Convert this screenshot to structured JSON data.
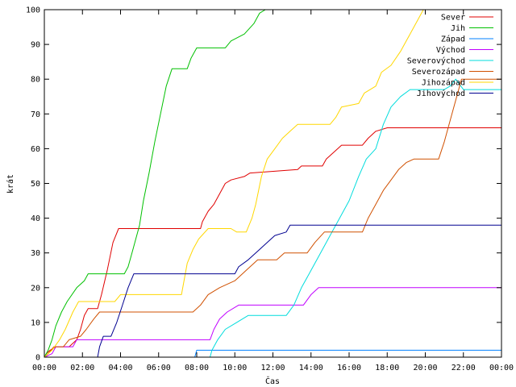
{
  "chart_data": {
    "type": "line",
    "xlabel": "Čas",
    "ylabel": "krát",
    "ylim": [
      0,
      100
    ],
    "xlim": [
      0,
      24
    ],
    "x_ticks": [
      "00:00",
      "02:00",
      "04:00",
      "06:00",
      "08:00",
      "10:00",
      "12:00",
      "14:00",
      "16:00",
      "18:00",
      "20:00",
      "22:00",
      "00:00"
    ],
    "y_ticks": [
      0,
      10,
      20,
      30,
      40,
      50,
      60,
      70,
      80,
      90,
      100
    ],
    "legend_position": "top-right",
    "grid": false,
    "series": [
      {
        "name": "Sever",
        "color": "#e00000",
        "points": [
          [
            0,
            0
          ],
          [
            0.1,
            1
          ],
          [
            0.3,
            2
          ],
          [
            0.6,
            3
          ],
          [
            1.3,
            3
          ],
          [
            1.7,
            5
          ],
          [
            1.9,
            8
          ],
          [
            2.1,
            12
          ],
          [
            2.3,
            14
          ],
          [
            2.8,
            14
          ],
          [
            3.0,
            18
          ],
          [
            3.3,
            25
          ],
          [
            3.6,
            33
          ],
          [
            3.9,
            37
          ],
          [
            8.2,
            37
          ],
          [
            8.3,
            39
          ],
          [
            8.6,
            42
          ],
          [
            8.9,
            44
          ],
          [
            9.2,
            47
          ],
          [
            9.5,
            50
          ],
          [
            9.8,
            51
          ],
          [
            10.5,
            52
          ],
          [
            10.8,
            53
          ],
          [
            13.3,
            54
          ],
          [
            13.5,
            55
          ],
          [
            14.6,
            55
          ],
          [
            14.8,
            57
          ],
          [
            15.2,
            59
          ],
          [
            15.6,
            61
          ],
          [
            16.7,
            61
          ],
          [
            17.0,
            63
          ],
          [
            17.4,
            65
          ],
          [
            18.0,
            66
          ],
          [
            24,
            66
          ]
        ]
      },
      {
        "name": "Jih",
        "color": "#00c000",
        "points": [
          [
            0,
            0
          ],
          [
            0.2,
            2
          ],
          [
            0.4,
            5
          ],
          [
            0.6,
            9
          ],
          [
            0.9,
            13
          ],
          [
            1.2,
            16
          ],
          [
            1.7,
            20
          ],
          [
            2.1,
            22
          ],
          [
            2.3,
            24
          ],
          [
            4.2,
            24
          ],
          [
            4.4,
            26
          ],
          [
            4.6,
            30
          ],
          [
            4.8,
            34
          ],
          [
            5.0,
            38
          ],
          [
            5.2,
            45
          ],
          [
            5.5,
            53
          ],
          [
            5.8,
            62
          ],
          [
            6.1,
            70
          ],
          [
            6.4,
            78
          ],
          [
            6.7,
            83
          ],
          [
            7.5,
            83
          ],
          [
            7.7,
            86
          ],
          [
            8.0,
            89
          ],
          [
            9.5,
            89
          ],
          [
            9.8,
            91
          ],
          [
            10.5,
            93
          ],
          [
            11.0,
            96
          ],
          [
            11.3,
            99
          ],
          [
            11.6,
            100
          ],
          [
            24,
            100
          ]
        ]
      },
      {
        "name": "Západ",
        "color": "#0080ff",
        "points": [
          [
            0,
            0
          ],
          [
            7.9,
            0
          ],
          [
            8.0,
            2
          ],
          [
            24,
            2
          ]
        ]
      },
      {
        "name": "Východ",
        "color": "#c000ff",
        "points": [
          [
            0,
            0
          ],
          [
            0.4,
            1
          ],
          [
            0.6,
            3
          ],
          [
            1.5,
            3
          ],
          [
            1.7,
            5
          ],
          [
            8.7,
            5
          ],
          [
            8.9,
            8
          ],
          [
            9.2,
            11
          ],
          [
            9.6,
            13
          ],
          [
            10.2,
            15
          ],
          [
            13.6,
            15
          ],
          [
            14.0,
            18
          ],
          [
            14.4,
            20
          ],
          [
            24,
            20
          ]
        ]
      },
      {
        "name": "Severovýchod",
        "color": "#00dcdc",
        "points": [
          [
            0,
            0
          ],
          [
            8.7,
            0
          ],
          [
            8.8,
            2
          ],
          [
            9.1,
            5
          ],
          [
            9.5,
            8
          ],
          [
            10.1,
            10
          ],
          [
            10.7,
            12
          ],
          [
            12.7,
            12
          ],
          [
            13.1,
            15
          ],
          [
            13.5,
            20
          ],
          [
            14.0,
            25
          ],
          [
            14.5,
            30
          ],
          [
            15.0,
            35
          ],
          [
            15.5,
            40
          ],
          [
            16.0,
            45
          ],
          [
            16.5,
            52
          ],
          [
            16.9,
            57
          ],
          [
            17.4,
            60
          ],
          [
            17.8,
            67
          ],
          [
            18.2,
            72
          ],
          [
            18.7,
            75
          ],
          [
            19.2,
            77
          ],
          [
            21.0,
            77
          ],
          [
            21.3,
            78
          ],
          [
            21.6,
            80
          ],
          [
            22.0,
            77
          ],
          [
            24,
            77
          ]
        ]
      },
      {
        "name": "Severozápad",
        "color": "#d05000",
        "points": [
          [
            0,
            0
          ],
          [
            0.2,
            1
          ],
          [
            0.5,
            3
          ],
          [
            1.0,
            3
          ],
          [
            1.3,
            5
          ],
          [
            1.9,
            6
          ],
          [
            2.2,
            8
          ],
          [
            2.6,
            11
          ],
          [
            2.9,
            13
          ],
          [
            7.8,
            13
          ],
          [
            8.2,
            15
          ],
          [
            8.6,
            18
          ],
          [
            9.2,
            20
          ],
          [
            10.0,
            22
          ],
          [
            10.6,
            25
          ],
          [
            11.2,
            28
          ],
          [
            12.2,
            28
          ],
          [
            12.6,
            30
          ],
          [
            13.8,
            30
          ],
          [
            14.2,
            33
          ],
          [
            14.7,
            36
          ],
          [
            16.7,
            36
          ],
          [
            17.0,
            40
          ],
          [
            17.4,
            44
          ],
          [
            17.8,
            48
          ],
          [
            18.2,
            51
          ],
          [
            18.6,
            54
          ],
          [
            19.0,
            56
          ],
          [
            19.4,
            57
          ],
          [
            20.7,
            57
          ],
          [
            21.0,
            62
          ],
          [
            21.3,
            68
          ],
          [
            21.6,
            74
          ],
          [
            21.9,
            80
          ],
          [
            24,
            80
          ]
        ]
      },
      {
        "name": "Jihozápad",
        "color": "#ffd700",
        "points": [
          [
            0,
            0
          ],
          [
            0.4,
            2
          ],
          [
            0.8,
            5
          ],
          [
            1.1,
            8
          ],
          [
            1.5,
            13
          ],
          [
            1.8,
            16
          ],
          [
            3.7,
            16
          ],
          [
            4.0,
            18
          ],
          [
            7.2,
            18
          ],
          [
            7.5,
            27
          ],
          [
            7.8,
            31
          ],
          [
            8.1,
            34
          ],
          [
            8.6,
            37
          ],
          [
            9.8,
            37
          ],
          [
            10.1,
            36
          ],
          [
            10.6,
            36
          ],
          [
            10.9,
            40
          ],
          [
            11.1,
            44
          ],
          [
            11.4,
            52
          ],
          [
            11.7,
            57
          ],
          [
            12.1,
            60
          ],
          [
            12.5,
            63
          ],
          [
            12.9,
            65
          ],
          [
            13.3,
            67
          ],
          [
            15.0,
            67
          ],
          [
            15.3,
            69
          ],
          [
            15.6,
            72
          ],
          [
            16.5,
            73
          ],
          [
            16.8,
            76
          ],
          [
            17.4,
            78
          ],
          [
            17.7,
            82
          ],
          [
            18.2,
            84
          ],
          [
            18.7,
            88
          ],
          [
            19.0,
            91
          ],
          [
            19.3,
            94
          ],
          [
            19.6,
            97
          ],
          [
            19.9,
            100
          ],
          [
            24,
            100
          ]
        ]
      },
      {
        "name": "Jihovýchod",
        "color": "#000090",
        "points": [
          [
            0,
            0
          ],
          [
            2.8,
            0
          ],
          [
            2.9,
            3
          ],
          [
            3.1,
            6
          ],
          [
            3.5,
            6
          ],
          [
            3.8,
            10
          ],
          [
            4.1,
            15
          ],
          [
            4.4,
            20
          ],
          [
            4.7,
            24
          ],
          [
            10.0,
            24
          ],
          [
            10.2,
            26
          ],
          [
            10.7,
            28
          ],
          [
            11.3,
            31
          ],
          [
            11.7,
            33
          ],
          [
            12.1,
            35
          ],
          [
            12.7,
            36
          ],
          [
            12.9,
            38
          ],
          [
            24,
            38
          ]
        ]
      }
    ]
  }
}
